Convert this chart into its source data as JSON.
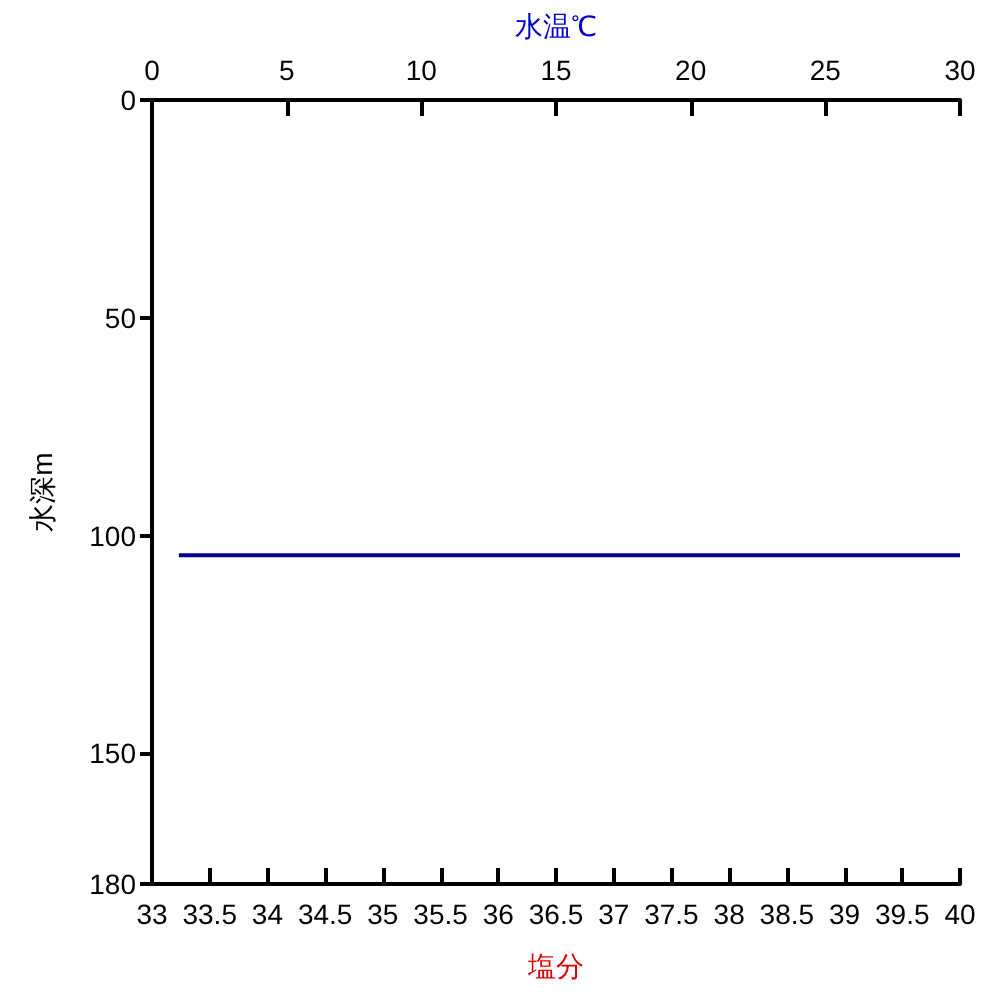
{
  "chart_data": {
    "type": "line",
    "xlabel": "塩分",
    "x2label": "水温℃",
    "ylabel": "水深m",
    "xlim": [
      33,
      40
    ],
    "xticks": [
      33,
      33.5,
      34,
      34.5,
      35,
      35.5,
      36,
      36.5,
      37,
      37.5,
      38,
      38.5,
      39,
      39.5,
      40
    ],
    "x2lim": [
      0,
      30
    ],
    "x2ticks": [
      0,
      5,
      10,
      15,
      20,
      25,
      30
    ],
    "ylim": [
      180,
      0
    ],
    "yticks": [
      0,
      50,
      100,
      150,
      180
    ],
    "series": [
      {
        "axis": "x2",
        "color": "#00008b",
        "x": [
          1,
          30
        ],
        "values": [
          104.5,
          104.5
        ]
      }
    ],
    "grid": false,
    "marker": "none",
    "line_style": "solid"
  }
}
